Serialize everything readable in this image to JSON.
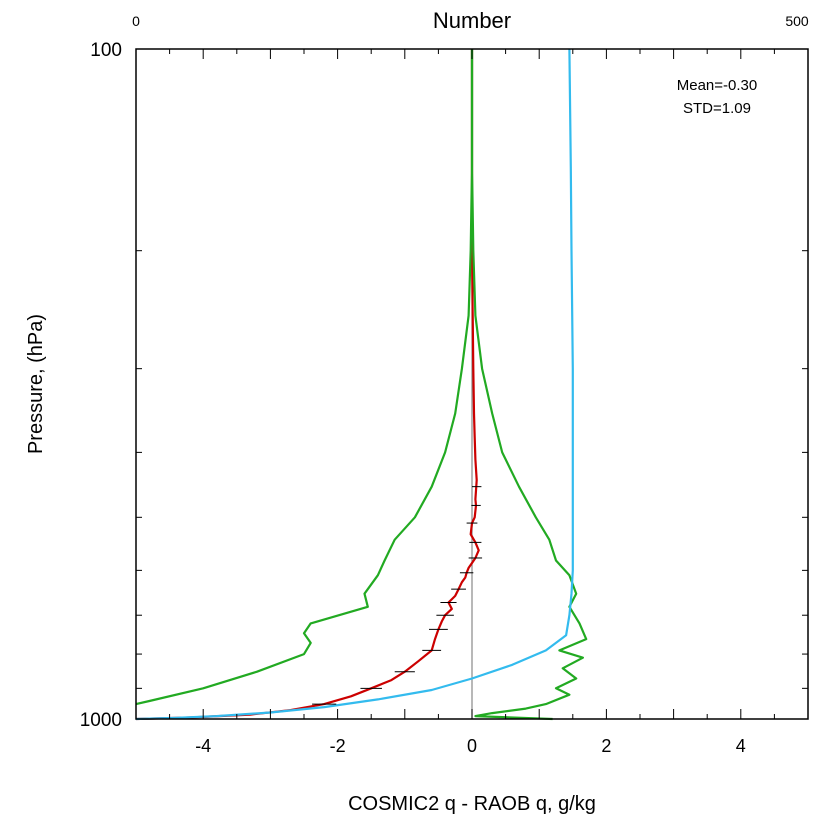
{
  "chart_data": {
    "type": "line",
    "top_axis": {
      "label": "Number",
      "min_label": "0",
      "max_label": "500",
      "range": [
        0,
        500
      ]
    },
    "xlabel": "COSMIC2 q - RAOB q, g/kg",
    "ylabel": "Pressure, (hPa)",
    "xlim": [
      -5,
      5
    ],
    "ylim": [
      1000,
      100
    ],
    "y_scale": "log",
    "x_ticks": [
      "-4",
      "-2",
      "0",
      "2",
      "4"
    ],
    "y_ticks": [
      "100",
      "1000"
    ],
    "annotations": [
      "Mean=-0.30",
      "STD=1.09"
    ],
    "colors": {
      "mean": "#cc0000",
      "std_bounds": "#22aa22",
      "number": "#33bbee",
      "error_bars": "#000000",
      "zero_line": "#888888"
    },
    "series": [
      {
        "role": "mean",
        "color": "#cc0000",
        "points": [
          [
            0.0,
            100
          ],
          [
            0.0,
            150
          ],
          [
            0.0,
            200
          ],
          [
            0.01,
            250
          ],
          [
            0.02,
            300
          ],
          [
            0.03,
            350
          ],
          [
            0.04,
            380
          ],
          [
            0.05,
            410
          ],
          [
            0.07,
            440
          ],
          [
            0.05,
            470
          ],
          [
            0.06,
            480
          ],
          [
            0.04,
            500
          ],
          [
            0.0,
            510
          ],
          [
            -0.02,
            530
          ],
          [
            0.05,
            545
          ],
          [
            0.1,
            560
          ],
          [
            0.05,
            575
          ],
          [
            0.0,
            585
          ],
          [
            -0.05,
            595
          ],
          [
            -0.08,
            605
          ],
          [
            -0.1,
            615
          ],
          [
            -0.15,
            625
          ],
          [
            -0.2,
            640
          ],
          [
            -0.25,
            655
          ],
          [
            -0.35,
            670
          ],
          [
            -0.3,
            685
          ],
          [
            -0.4,
            700
          ],
          [
            -0.45,
            715
          ],
          [
            -0.5,
            735
          ],
          [
            -0.55,
            760
          ],
          [
            -0.6,
            790
          ],
          [
            -0.8,
            820
          ],
          [
            -1.0,
            850
          ],
          [
            -1.2,
            875
          ],
          [
            -1.5,
            900
          ],
          [
            -1.8,
            925
          ],
          [
            -2.2,
            950
          ],
          [
            -2.7,
            970
          ],
          [
            -3.3,
            985
          ],
          [
            -4.2,
            995
          ],
          [
            -5.0,
            1000
          ]
        ]
      },
      {
        "role": "mean-minus-std",
        "color": "#22aa22",
        "points": [
          [
            0.0,
            100
          ],
          [
            0.0,
            150
          ],
          [
            -0.02,
            200
          ],
          [
            -0.05,
            250
          ],
          [
            -0.15,
            300
          ],
          [
            -0.25,
            350
          ],
          [
            -0.4,
            400
          ],
          [
            -0.6,
            450
          ],
          [
            -0.85,
            500
          ],
          [
            -1.15,
            540
          ],
          [
            -1.3,
            580
          ],
          [
            -1.4,
            610
          ],
          [
            -1.6,
            650
          ],
          [
            -1.55,
            680
          ],
          [
            -2.4,
            720
          ],
          [
            -2.5,
            745
          ],
          [
            -2.4,
            770
          ],
          [
            -2.5,
            800
          ],
          [
            -3.2,
            850
          ],
          [
            -4.0,
            900
          ],
          [
            -4.8,
            940
          ],
          [
            -5.0,
            950
          ]
        ]
      },
      {
        "role": "mean-plus-std",
        "color": "#22aa22",
        "points": [
          [
            0.0,
            100
          ],
          [
            0.0,
            150
          ],
          [
            0.02,
            200
          ],
          [
            0.05,
            250
          ],
          [
            0.15,
            300
          ],
          [
            0.3,
            350
          ],
          [
            0.45,
            400
          ],
          [
            0.7,
            450
          ],
          [
            0.95,
            500
          ],
          [
            1.15,
            540
          ],
          [
            1.25,
            580
          ],
          [
            1.45,
            610
          ],
          [
            1.55,
            650
          ],
          [
            1.45,
            680
          ],
          [
            1.6,
            720
          ],
          [
            1.7,
            760
          ],
          [
            1.3,
            790
          ],
          [
            1.65,
            810
          ],
          [
            1.35,
            840
          ],
          [
            1.55,
            870
          ],
          [
            1.25,
            900
          ],
          [
            1.45,
            920
          ],
          [
            1.1,
            950
          ],
          [
            0.8,
            965
          ],
          [
            0.3,
            980
          ],
          [
            0.05,
            990
          ],
          [
            1.2,
            1000
          ]
        ]
      },
      {
        "role": "number",
        "color": "#33bbee",
        "points": [
          [
            1.45,
            100
          ],
          [
            1.47,
            150
          ],
          [
            1.48,
            200
          ],
          [
            1.5,
            300
          ],
          [
            1.5,
            400
          ],
          [
            1.5,
            500
          ],
          [
            1.5,
            600
          ],
          [
            1.48,
            650
          ],
          [
            1.45,
            700
          ],
          [
            1.4,
            750
          ],
          [
            1.1,
            790
          ],
          [
            0.6,
            830
          ],
          [
            0.0,
            870
          ],
          [
            -0.6,
            905
          ],
          [
            -1.4,
            935
          ],
          [
            -2.2,
            960
          ],
          [
            -3.0,
            978
          ],
          [
            -3.8,
            990
          ],
          [
            -4.4,
            996
          ],
          [
            -5.0,
            1000
          ]
        ]
      }
    ],
    "error_bars": [
      {
        "p": 450,
        "x": 0.07,
        "half": 0.07
      },
      {
        "p": 480,
        "x": 0.06,
        "half": 0.07
      },
      {
        "p": 510,
        "x": 0.0,
        "half": 0.08
      },
      {
        "p": 545,
        "x": 0.05,
        "half": 0.09
      },
      {
        "p": 575,
        "x": 0.05,
        "half": 0.1
      },
      {
        "p": 605,
        "x": -0.08,
        "half": 0.1
      },
      {
        "p": 640,
        "x": -0.2,
        "half": 0.11
      },
      {
        "p": 670,
        "x": -0.35,
        "half": 0.12
      },
      {
        "p": 700,
        "x": -0.4,
        "half": 0.13
      },
      {
        "p": 735,
        "x": -0.5,
        "half": 0.14
      },
      {
        "p": 790,
        "x": -0.6,
        "half": 0.14
      },
      {
        "p": 850,
        "x": -1.0,
        "half": 0.15
      },
      {
        "p": 900,
        "x": -1.5,
        "half": 0.16
      },
      {
        "p": 950,
        "x": -2.2,
        "half": 0.18
      }
    ]
  }
}
